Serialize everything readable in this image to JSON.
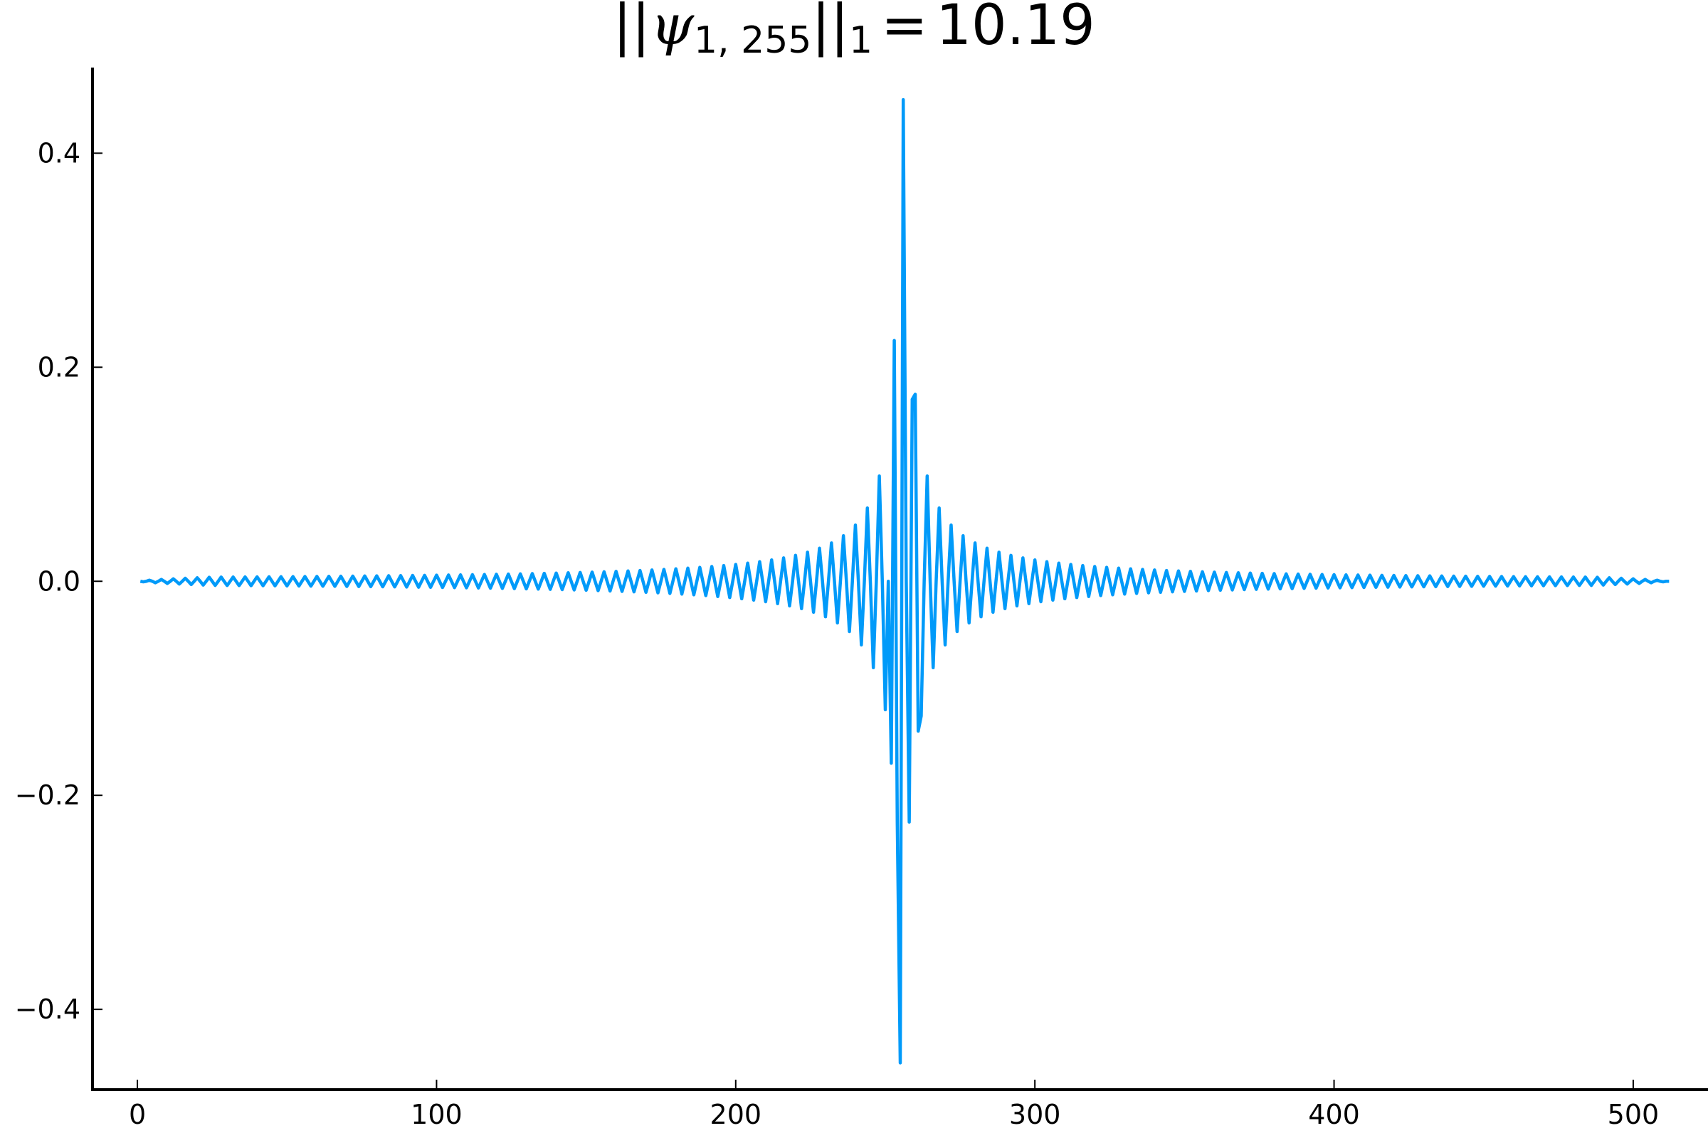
{
  "chart_data": {
    "type": "line",
    "title": {
      "prefix": "||",
      "symbol": "ψ",
      "subscript": "1, 255",
      "suffix": "||",
      "norm_subscript": "1",
      "equals": "=",
      "value": "10.19"
    },
    "xlabel": "",
    "ylabel": "",
    "xlim": [
      -15,
      525
    ],
    "ylim": [
      -0.475,
      0.48
    ],
    "xticks": [
      0,
      100,
      200,
      300,
      400,
      500
    ],
    "xtick_labels": [
      "0",
      "100",
      "200",
      "300",
      "400",
      "500"
    ],
    "yticks": [
      0.4,
      0.2,
      0.0,
      -0.2,
      -0.4
    ],
    "ytick_labels": [
      "0.4",
      "0.2",
      "0.0",
      "−0.2",
      "−0.4"
    ],
    "grid": false,
    "legend": "none",
    "series": [
      {
        "color": "#009af9",
        "x_start": 1,
        "x_end": 512,
        "center": 256,
        "period": 4,
        "envelope_note": "oscillation with period 4, decaying from center; peak at x=256",
        "key_points": [
          {
            "x": 1,
            "y": 0.0
          },
          {
            "x": 250,
            "y": -0.12
          },
          {
            "x": 252,
            "y": -0.17
          },
          {
            "x": 253,
            "y": 0.225
          },
          {
            "x": 255,
            "y": -0.45
          },
          {
            "x": 256,
            "y": 0.45
          },
          {
            "x": 258,
            "y": -0.225
          },
          {
            "x": 259,
            "y": 0.17
          },
          {
            "x": 261,
            "y": -0.14
          },
          {
            "x": 512,
            "y": 0.0
          }
        ]
      }
    ]
  }
}
